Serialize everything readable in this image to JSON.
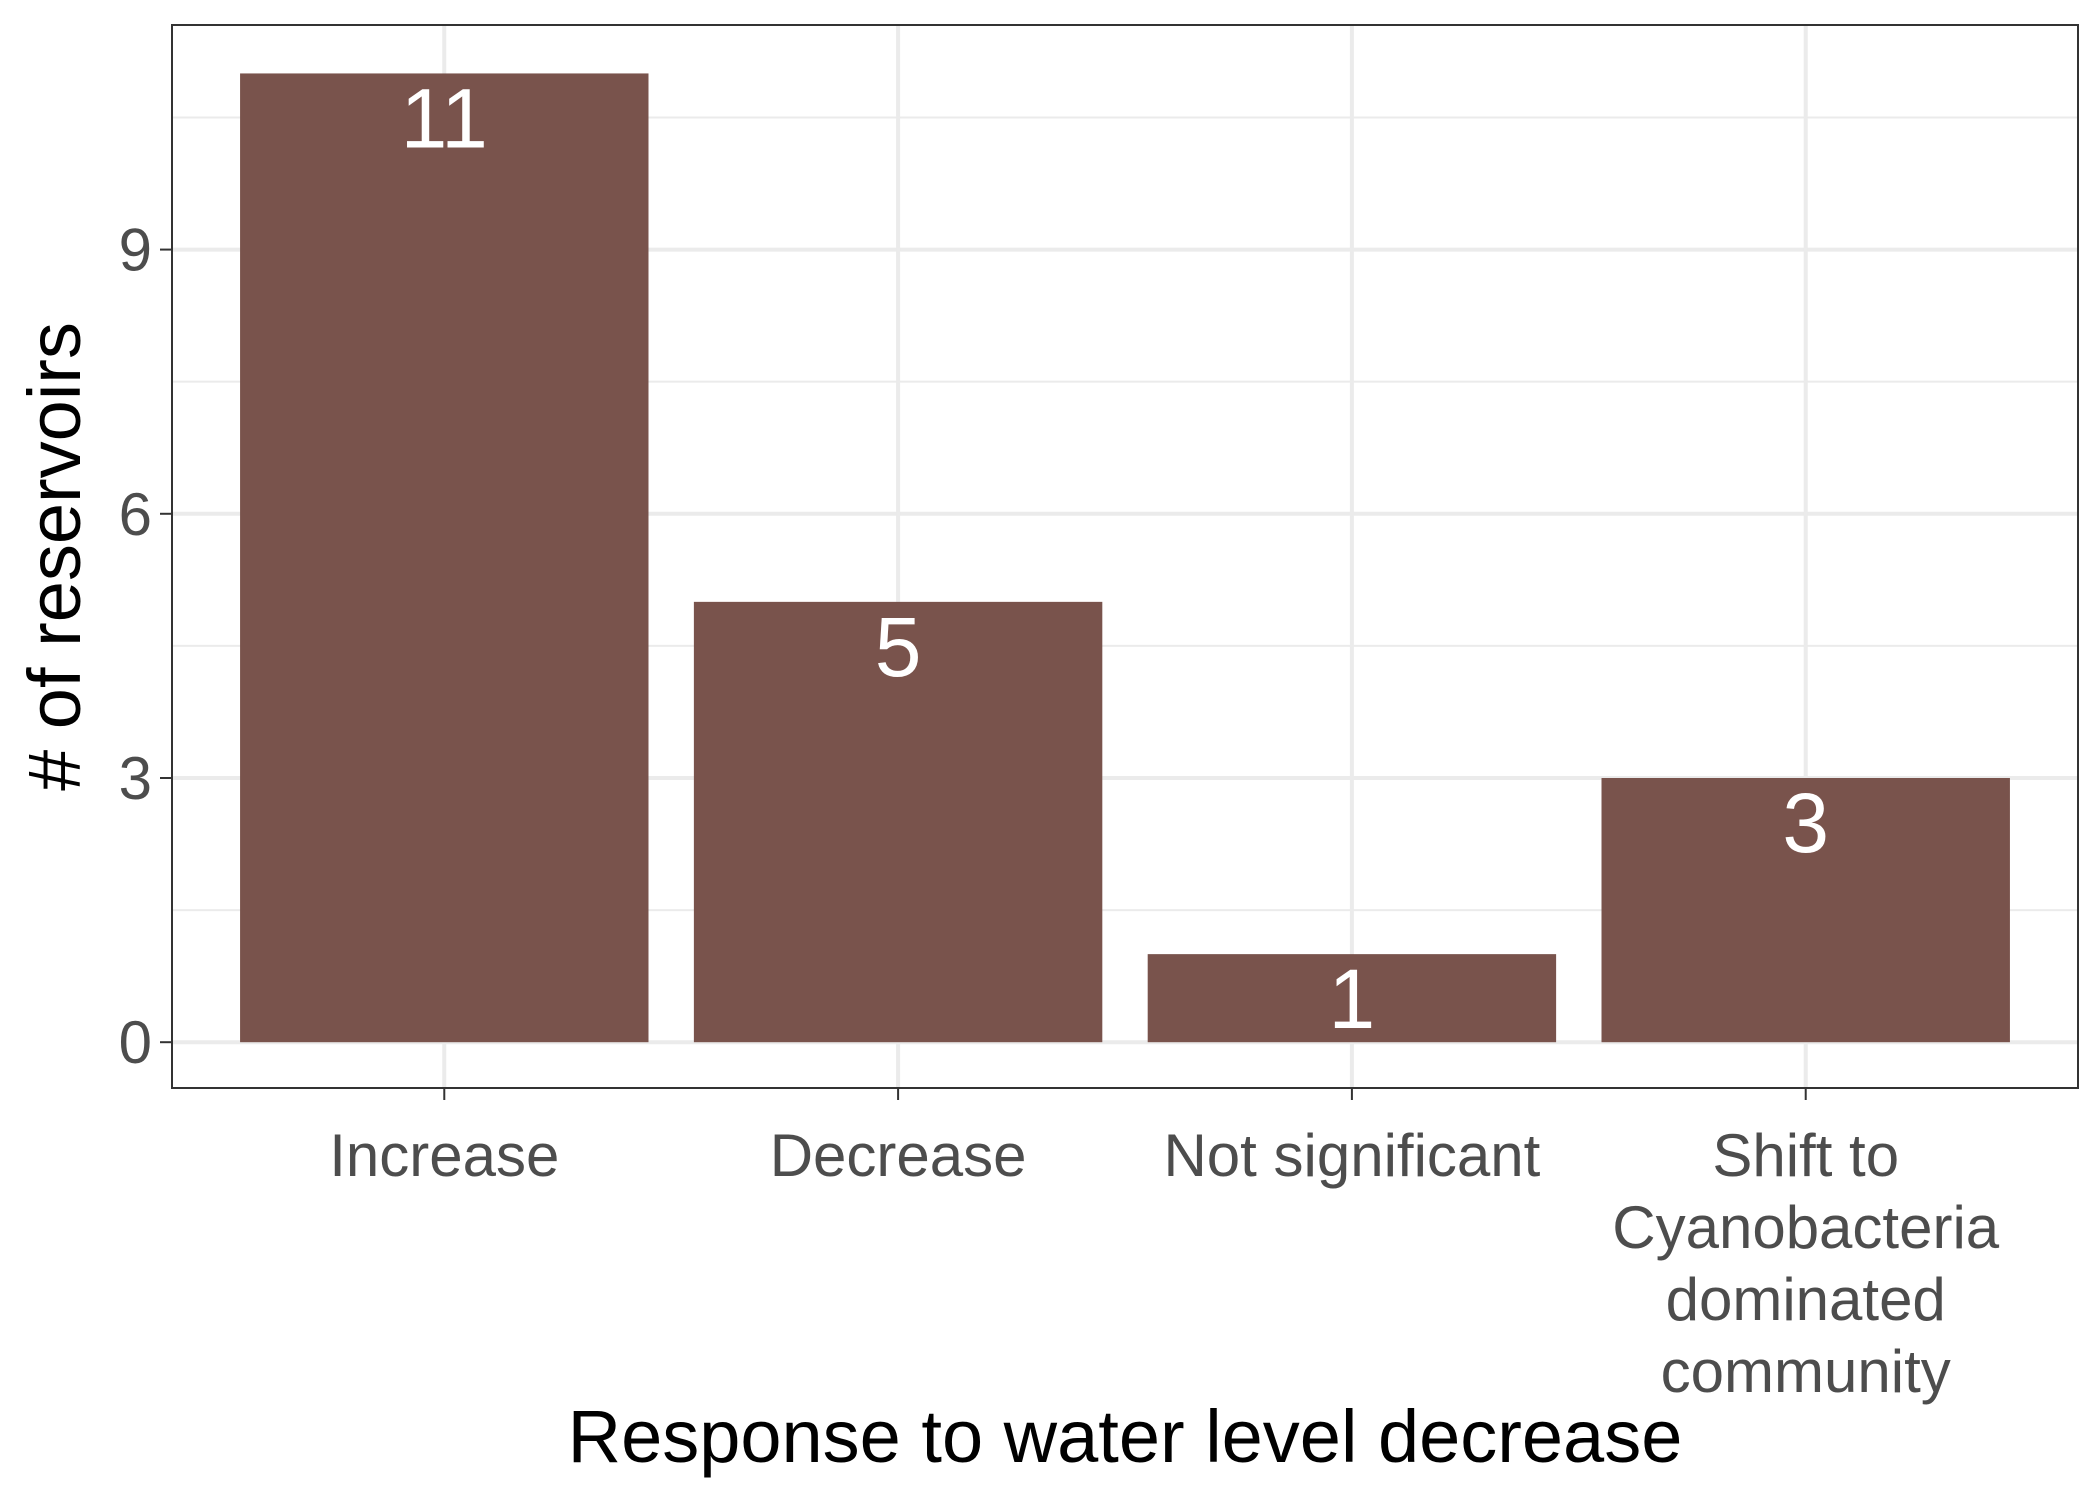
{
  "chart_data": {
    "type": "bar",
    "categories": [
      [
        "Increase"
      ],
      [
        "Decrease"
      ],
      [
        "Not significant"
      ],
      [
        "Shift to",
        "Cyanobacteria",
        "dominated",
        "community"
      ]
    ],
    "values": [
      11,
      5,
      1,
      3
    ],
    "data_labels": [
      "11",
      "5",
      "1",
      "3"
    ],
    "xlabel": "Response to water level decrease",
    "ylabel": "# of reservoirs",
    "ylim": [
      -0.52,
      11.55
    ],
    "yticks": [
      0,
      3,
      6,
      9
    ],
    "ytick_labels": [
      "0",
      "3",
      "6",
      "9"
    ],
    "grid": true,
    "colors": {
      "bar": "#79534C",
      "grid": "#EBEBEB",
      "panel_border": "#333333",
      "tick_text": "#4D4D4D",
      "bar_label_text": "#FFFFFF"
    }
  }
}
